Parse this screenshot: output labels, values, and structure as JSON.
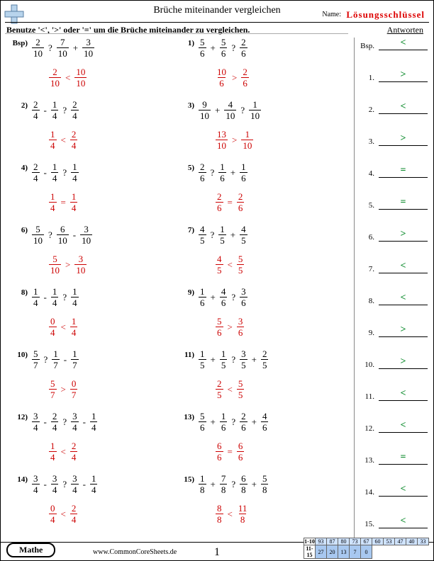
{
  "header": {
    "title": "Brüche miteinander vergleichen",
    "name_label": "Name:",
    "answer_key": "Lösungsschlüssel",
    "instruction": "Benutze '<', '>' oder '=' um die Brüche miteinander zu vergleichen.",
    "answers_header": "Antworten"
  },
  "colors": {
    "answer_red": "#c00",
    "answer_green": "#0a8a2a",
    "key_red": "#d00"
  },
  "problems": [
    {
      "n": "Bsp)",
      "lhs": [
        [
          "2",
          "10"
        ]
      ],
      "op1": "?",
      "mid": [
        [
          "7",
          "10"
        ]
      ],
      "op2": "+",
      "rhs": [
        [
          "3",
          "10"
        ]
      ],
      "ans_lhs": [
        "2",
        "10"
      ],
      "sym": "<",
      "ans_rhs": [
        "10",
        "10"
      ],
      "col": "L"
    },
    {
      "n": "1)",
      "lhs": [
        [
          "5",
          "6"
        ]
      ],
      "op1": "+",
      "mid": [
        [
          "5",
          "6"
        ]
      ],
      "op2": "?",
      "rhs": [
        [
          "2",
          "6"
        ]
      ],
      "ans_lhs": [
        "10",
        "6"
      ],
      "sym": ">",
      "ans_rhs": [
        "2",
        "6"
      ],
      "col": "R"
    },
    {
      "n": "2)",
      "lhs": [
        [
          "2",
          "4"
        ]
      ],
      "op1": "-",
      "mid": [
        [
          "1",
          "4"
        ]
      ],
      "op2": "?",
      "rhs": [
        [
          "2",
          "4"
        ]
      ],
      "ans_lhs": [
        "1",
        "4"
      ],
      "sym": "<",
      "ans_rhs": [
        "2",
        "4"
      ],
      "col": "L"
    },
    {
      "n": "3)",
      "lhs": [
        [
          "9",
          "10"
        ]
      ],
      "op1": "+",
      "mid": [
        [
          "4",
          "10"
        ]
      ],
      "op2": "?",
      "rhs": [
        [
          "1",
          "10"
        ]
      ],
      "ans_lhs": [
        "13",
        "10"
      ],
      "sym": ">",
      "ans_rhs": [
        "1",
        "10"
      ],
      "col": "R"
    },
    {
      "n": "4)",
      "lhs": [
        [
          "2",
          "4"
        ]
      ],
      "op1": "-",
      "mid": [
        [
          "1",
          "4"
        ]
      ],
      "op2": "?",
      "rhs": [
        [
          "1",
          "4"
        ]
      ],
      "ans_lhs": [
        "1",
        "4"
      ],
      "sym": "=",
      "ans_rhs": [
        "1",
        "4"
      ],
      "col": "L"
    },
    {
      "n": "5)",
      "lhs": [
        [
          "2",
          "6"
        ]
      ],
      "op1": "?",
      "mid": [
        [
          "1",
          "6"
        ]
      ],
      "op2": "+",
      "rhs": [
        [
          "1",
          "6"
        ]
      ],
      "ans_lhs": [
        "2",
        "6"
      ],
      "sym": "=",
      "ans_rhs": [
        "2",
        "6"
      ],
      "col": "R"
    },
    {
      "n": "6)",
      "lhs": [
        [
          "5",
          "10"
        ]
      ],
      "op1": "?",
      "mid": [
        [
          "6",
          "10"
        ]
      ],
      "op2": "-",
      "rhs": [
        [
          "3",
          "10"
        ]
      ],
      "ans_lhs": [
        "5",
        "10"
      ],
      "sym": ">",
      "ans_rhs": [
        "3",
        "10"
      ],
      "col": "L"
    },
    {
      "n": "7)",
      "lhs": [
        [
          "4",
          "5"
        ]
      ],
      "op1": "?",
      "mid": [
        [
          "1",
          "5"
        ]
      ],
      "op2": "+",
      "rhs": [
        [
          "4",
          "5"
        ]
      ],
      "ans_lhs": [
        "4",
        "5"
      ],
      "sym": "<",
      "ans_rhs": [
        "5",
        "5"
      ],
      "col": "R"
    },
    {
      "n": "8)",
      "lhs": [
        [
          "1",
          "4"
        ]
      ],
      "op1": "-",
      "mid": [
        [
          "1",
          "4"
        ]
      ],
      "op2": "?",
      "rhs": [
        [
          "1",
          "4"
        ]
      ],
      "ans_lhs": [
        "0",
        "4"
      ],
      "sym": "<",
      "ans_rhs": [
        "1",
        "4"
      ],
      "col": "L"
    },
    {
      "n": "9)",
      "lhs": [
        [
          "1",
          "6"
        ]
      ],
      "op1": "+",
      "mid": [
        [
          "4",
          "6"
        ]
      ],
      "op2": "?",
      "rhs": [
        [
          "3",
          "6"
        ]
      ],
      "ans_lhs": [
        "5",
        "6"
      ],
      "sym": ">",
      "ans_rhs": [
        "3",
        "6"
      ],
      "col": "R"
    },
    {
      "n": "10)",
      "lhs": [
        [
          "5",
          "7"
        ]
      ],
      "op1": "?",
      "mid": [
        [
          "1",
          "7"
        ]
      ],
      "op2": "-",
      "rhs": [
        [
          "1",
          "7"
        ]
      ],
      "ans_lhs": [
        "5",
        "7"
      ],
      "sym": ">",
      "ans_rhs": [
        "0",
        "7"
      ],
      "col": "L"
    },
    {
      "n": "11)",
      "lhs": [
        [
          "1",
          "5"
        ]
      ],
      "op1": "+",
      "mid": [
        [
          "1",
          "5"
        ]
      ],
      "op2": "?",
      "rhs2": [
        [
          "3",
          "5"
        ],
        "+",
        [
          "2",
          "5"
        ]
      ],
      "ans_lhs": [
        "2",
        "5"
      ],
      "sym": "<",
      "ans_rhs": [
        "5",
        "5"
      ],
      "col": "R",
      "four": true
    },
    {
      "n": "12)",
      "lhs": [
        [
          "3",
          "4"
        ]
      ],
      "op1": "-",
      "mid": [
        [
          "2",
          "4"
        ]
      ],
      "op2": "?",
      "rhs2": [
        [
          "3",
          "4"
        ],
        "-",
        [
          "1",
          "4"
        ]
      ],
      "ans_lhs": [
        "1",
        "4"
      ],
      "sym": "<",
      "ans_rhs": [
        "2",
        "4"
      ],
      "col": "L",
      "four": true
    },
    {
      "n": "13)",
      "lhs": [
        [
          "5",
          "6"
        ]
      ],
      "op1": "+",
      "mid": [
        [
          "1",
          "6"
        ]
      ],
      "op2": "?",
      "rhs2": [
        [
          "2",
          "6"
        ],
        "+",
        [
          "4",
          "6"
        ]
      ],
      "ans_lhs": [
        "6",
        "6"
      ],
      "sym": "=",
      "ans_rhs": [
        "6",
        "6"
      ],
      "col": "R",
      "four": true
    },
    {
      "n": "14)",
      "lhs": [
        [
          "3",
          "4"
        ]
      ],
      "op1": "-",
      "mid": [
        [
          "3",
          "4"
        ]
      ],
      "op2": "?",
      "rhs2": [
        [
          "3",
          "4"
        ],
        "-",
        [
          "1",
          "4"
        ]
      ],
      "ans_lhs": [
        "0",
        "4"
      ],
      "sym": "<",
      "ans_rhs": [
        "2",
        "4"
      ],
      "col": "L",
      "four": true
    },
    {
      "n": "15)",
      "lhs": [
        [
          "1",
          "8"
        ]
      ],
      "op1": "+",
      "mid": [
        [
          "7",
          "8"
        ]
      ],
      "op2": "?",
      "rhs2": [
        [
          "6",
          "8"
        ],
        "+",
        [
          "5",
          "8"
        ]
      ],
      "ans_lhs": [
        "8",
        "8"
      ],
      "sym": "<",
      "ans_rhs": [
        "11",
        "8"
      ],
      "col": "R",
      "four": true
    }
  ],
  "answers": [
    {
      "lbl": "Bsp.",
      "val": "<"
    },
    {
      "lbl": "1.",
      "val": ">"
    },
    {
      "lbl": "2.",
      "val": "<"
    },
    {
      "lbl": "3.",
      "val": ">"
    },
    {
      "lbl": "4.",
      "val": "="
    },
    {
      "lbl": "5.",
      "val": "="
    },
    {
      "lbl": "6.",
      "val": ">"
    },
    {
      "lbl": "7.",
      "val": "<"
    },
    {
      "lbl": "8.",
      "val": "<"
    },
    {
      "lbl": "9.",
      "val": ">"
    },
    {
      "lbl": "10.",
      "val": ">"
    },
    {
      "lbl": "11.",
      "val": "<"
    },
    {
      "lbl": "12.",
      "val": "<"
    },
    {
      "lbl": "13.",
      "val": "="
    },
    {
      "lbl": "14.",
      "val": "<"
    },
    {
      "lbl": "15.",
      "val": "<"
    }
  ],
  "footer": {
    "subject": "Mathe",
    "site": "www.CommonCoreSheets.de",
    "page": "1",
    "grade": {
      "row1_lbl": "1-10",
      "row1": [
        "93",
        "87",
        "80",
        "73",
        "67",
        "60",
        "53",
        "47",
        "40",
        "33"
      ],
      "row2_lbl": "11-15",
      "row2": [
        "27",
        "20",
        "13",
        "7",
        "0"
      ]
    }
  }
}
